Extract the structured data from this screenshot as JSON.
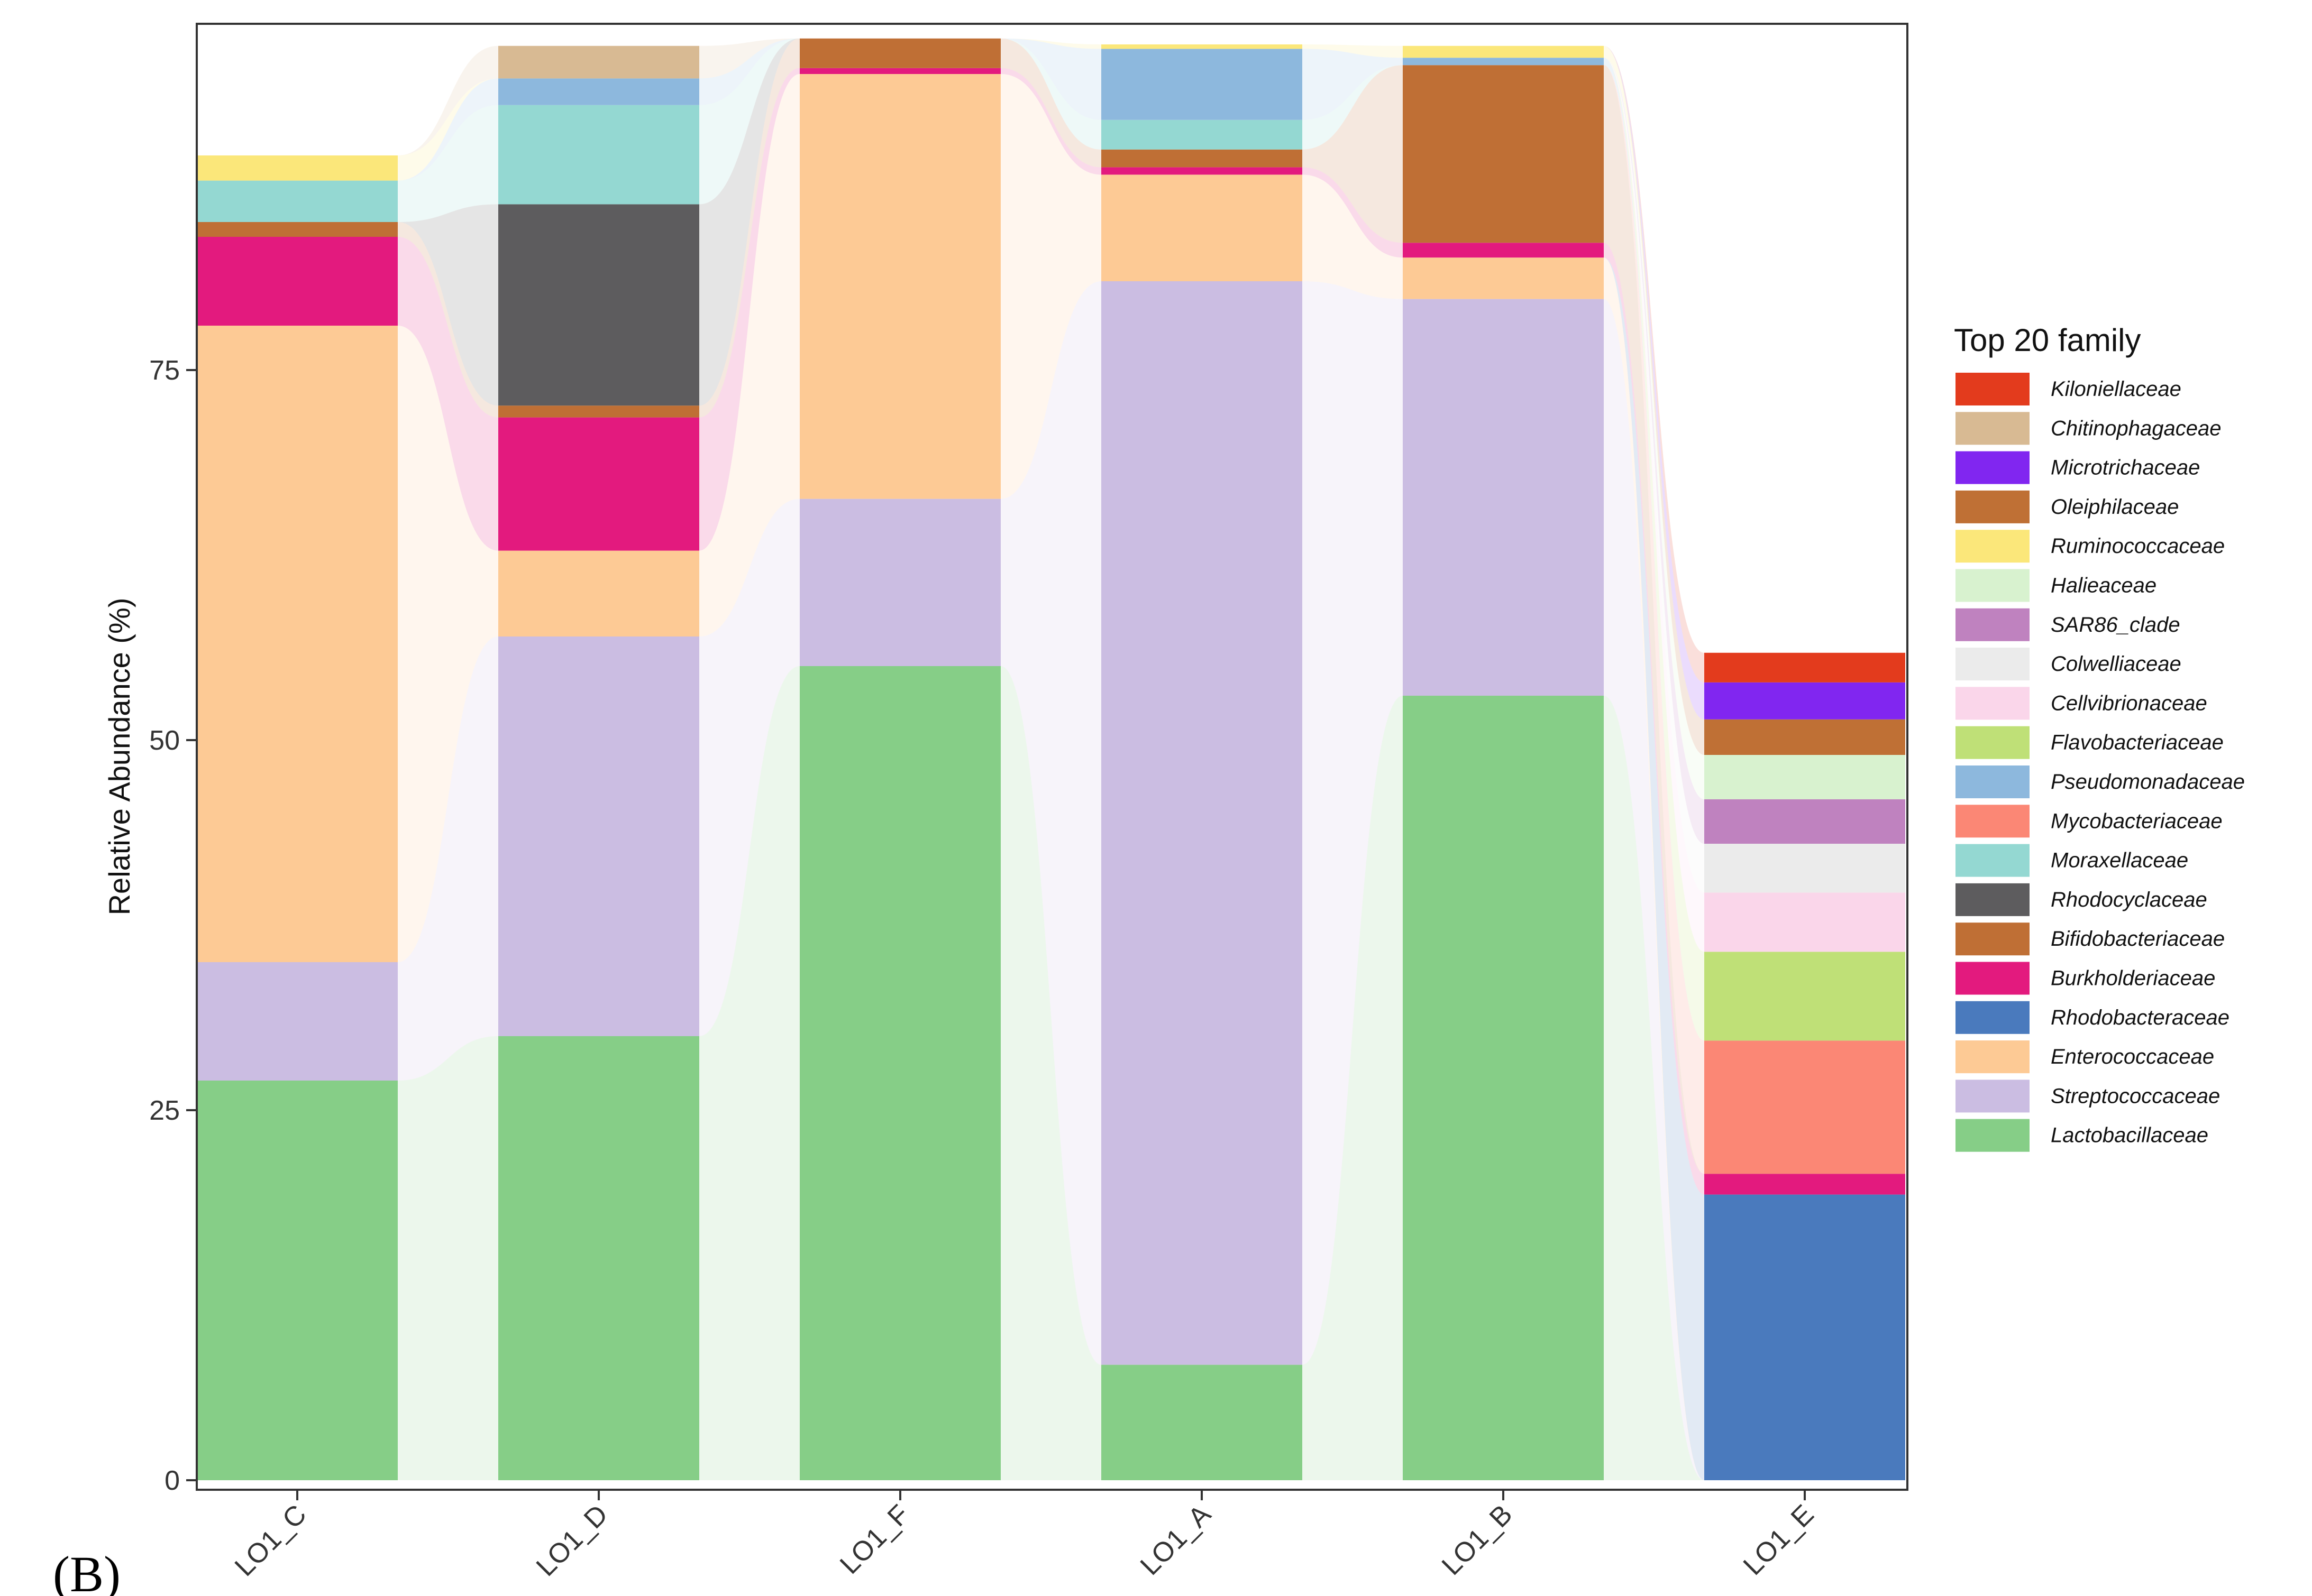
{
  "chart_data": {
    "type": "stacked-bar-alluvial",
    "panel_label": "(B)",
    "ylabel": "Relative Abundance (%)",
    "xlabel": "",
    "ylim": [
      0,
      100
    ],
    "yticks": [
      0,
      25,
      50,
      75
    ],
    "categories": [
      "LO1_C",
      "LO1_D",
      "LO1_F",
      "LO1_A",
      "LO1_B",
      "LO1_E"
    ],
    "legend_title": "Top 20 family",
    "series": [
      {
        "name": "Lactobacillaceae",
        "color": "#86ce87",
        "values": [
          27,
          30,
          55,
          7.8,
          53,
          0
        ]
      },
      {
        "name": "Streptococcaceae",
        "color": "#cbbde2",
        "values": [
          8,
          27,
          11.3,
          73.2,
          26.8,
          0
        ]
      },
      {
        "name": "Enterococcaceae",
        "color": "#fdca95",
        "values": [
          43,
          5.8,
          28.7,
          7.2,
          2.8,
          0
        ]
      },
      {
        "name": "Rhodobacteraceae",
        "color": "#4a7abd",
        "values": [
          0,
          0,
          0,
          0,
          0,
          19.3
        ]
      },
      {
        "name": "Burkholderiaceae",
        "color": "#e31a7e",
        "values": [
          6,
          9,
          0.4,
          0.5,
          1,
          1.4
        ]
      },
      {
        "name": "Bifidobacteriaceae",
        "color": "#bf6f35",
        "values": [
          1,
          0.8,
          2,
          1.2,
          12,
          0
        ]
      },
      {
        "name": "Rhodocyclaceae",
        "color": "#5d5c5e",
        "values": [
          0,
          13.6,
          0,
          0,
          0,
          0
        ]
      },
      {
        "name": "Moraxellaceae",
        "color": "#94d8d2",
        "values": [
          2.8,
          6.7,
          0,
          2,
          0,
          0
        ]
      },
      {
        "name": "Mycobacteriaceae",
        "color": "#fb8775",
        "values": [
          0,
          0,
          0,
          0,
          0,
          9
        ]
      },
      {
        "name": "Pseudomonadaceae",
        "color": "#8db8dd",
        "values": [
          0,
          1.8,
          0,
          4.8,
          0.5,
          0
        ]
      },
      {
        "name": "Flavobacteriaceae",
        "color": "#bfe077",
        "values": [
          0,
          0,
          0,
          0,
          0,
          6
        ]
      },
      {
        "name": "Cellvibrionaceae",
        "color": "#fad6ea",
        "values": [
          0,
          0,
          0,
          0,
          0,
          4
        ]
      },
      {
        "name": "Colwelliaceae",
        "color": "#ebebeb",
        "values": [
          0,
          0,
          0,
          0,
          0,
          3.3
        ]
      },
      {
        "name": "SAR86_clade",
        "color": "#bf82bf",
        "values": [
          0,
          0,
          0,
          0,
          0,
          3
        ]
      },
      {
        "name": "Halieaceae",
        "color": "#d8f2cf",
        "values": [
          0,
          0,
          0,
          0,
          0,
          3
        ]
      },
      {
        "name": "Ruminococcaceae",
        "color": "#fbe77a",
        "values": [
          1.7,
          0,
          0,
          0.3,
          0.8,
          0
        ]
      },
      {
        "name": "Oleiphilaceae",
        "color": "#bf7035",
        "values": [
          0,
          0,
          0,
          0,
          0,
          2.4
        ]
      },
      {
        "name": "Microtrichaceae",
        "color": "#8126f0",
        "values": [
          0,
          0,
          0,
          0,
          0,
          2.5
        ]
      },
      {
        "name": "Chitinophagaceae",
        "color": "#d8ba93",
        "values": [
          0,
          2.2,
          0,
          0,
          0,
          0
        ]
      },
      {
        "name": "Kiloniellaceae",
        "color": "#e33b1d",
        "values": [
          0,
          0,
          0,
          0,
          0,
          2
        ]
      }
    ],
    "legend_order": [
      "Kiloniellaceae",
      "Chitinophagaceae",
      "Microtrichaceae",
      "Oleiphilaceae",
      "Ruminococcaceae",
      "Halieaceae",
      "SAR86_clade",
      "Colwelliaceae",
      "Cellvibrionaceae",
      "Flavobacteriaceae",
      "Pseudomonadaceae",
      "Mycobacteriaceae",
      "Moraxellaceae",
      "Rhodocyclaceae",
      "Bifidobacteriaceae",
      "Burkholderiaceae",
      "Rhodobacteraceae",
      "Enterococcaceae",
      "Streptococcaceae",
      "Lactobacillaceae"
    ],
    "legend_position": "right",
    "grid": false
  }
}
